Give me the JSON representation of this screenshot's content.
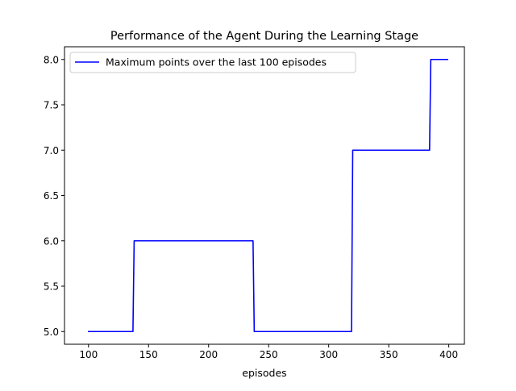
{
  "chart_data": {
    "type": "line",
    "title": "Performance of the Agent During the Learning Stage",
    "xlabel": "episodes",
    "ylabel": "",
    "xlim": [
      80,
      413
    ],
    "ylim": [
      4.86,
      8.14
    ],
    "xticks": [
      100,
      150,
      200,
      250,
      300,
      350,
      400
    ],
    "xtick_labels": [
      "100",
      "150",
      "200",
      "250",
      "300",
      "350",
      "400"
    ],
    "yticks": [
      5.0,
      5.5,
      6.0,
      6.5,
      7.0,
      7.5,
      8.0
    ],
    "ytick_labels": [
      "5.0",
      "5.5",
      "6.0",
      "6.5",
      "7.0",
      "7.5",
      "8.0"
    ],
    "grid": false,
    "legend_position": "top-left",
    "series": [
      {
        "name": "Maximum points over the last 100 episodes",
        "color": "#0000ff",
        "x": [
          100,
          137,
          138,
          237,
          238,
          319,
          320,
          384,
          385,
          399
        ],
        "y": [
          5,
          5,
          6,
          6,
          5,
          5,
          7,
          7,
          8,
          8
        ]
      }
    ]
  }
}
